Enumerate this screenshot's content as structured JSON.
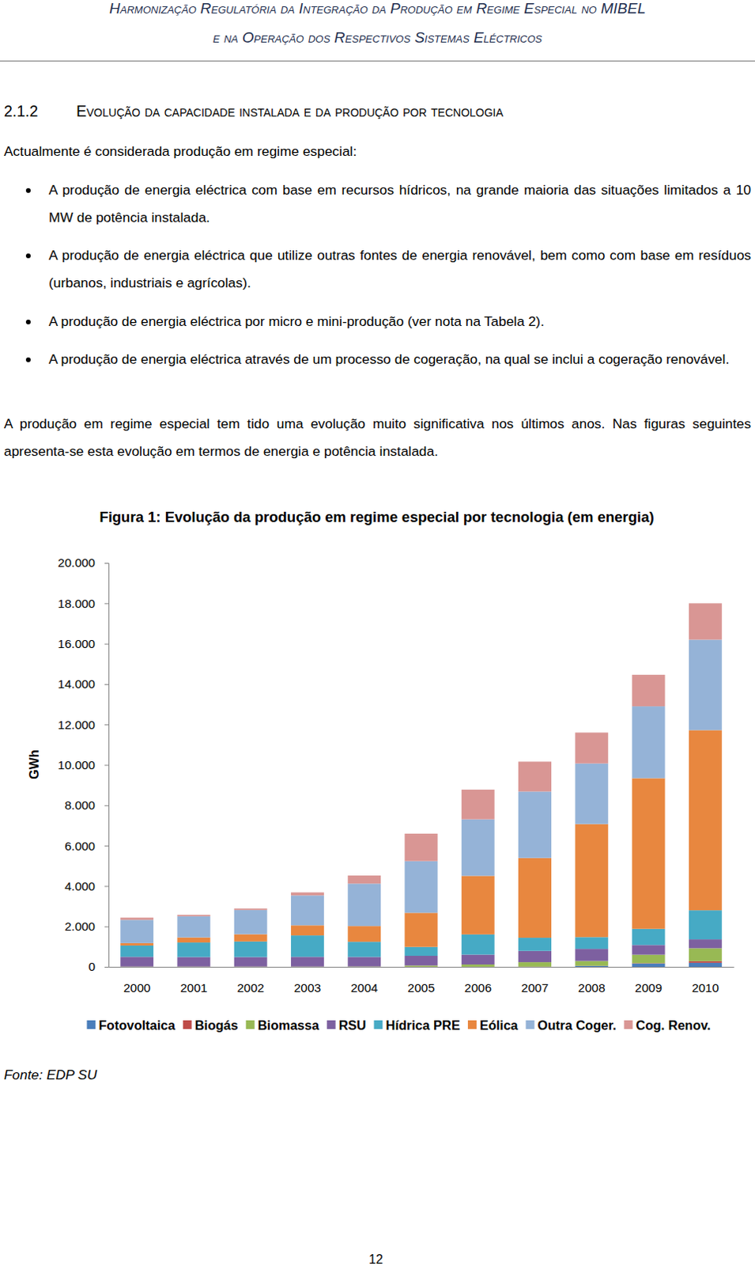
{
  "header": [
    "Harmonização Regulatória da Integração da Produção em Regime Especial no MIBEL",
    "e na Operação dos Respectivos Sistemas Eléctricos"
  ],
  "section": {
    "number": "2.1.2",
    "title": "Evolução da capacidade instalada e da produção por tecnologia"
  },
  "intro": "Actualmente é considerada produção em regime especial:",
  "bullets": [
    "A produção de energia eléctrica com base em recursos hídricos, na grande maioria das situações limitados a 10 MW de potência instalada.",
    "A produção de energia eléctrica que utilize outras fontes de energia renovável, bem como com base em resíduos (urbanos, industriais e agrícolas).",
    "A produção de energia eléctrica por micro e mini-produção (ver nota na Tabela 2).",
    "A produção de energia eléctrica através de um processo de cogeração, na qual se inclui a cogeração renovável."
  ],
  "paragraph": "A produção em regime especial tem tido uma evolução muito significativa nos últimos anos. Nas figuras seguintes apresenta-se esta evolução em termos de energia e potência instalada.",
  "chart_data": {
    "type": "bar",
    "title": "Figura 1: Evolução da produção em regime especial por tecnologia (em energia)",
    "y_label": "GWh",
    "stacked": true,
    "grid": false,
    "legend": "bottom",
    "categories": [
      "2000",
      "2001",
      "2002",
      "2003",
      "2004",
      "2005",
      "2006",
      "2007",
      "2008",
      "2009",
      "2010"
    ],
    "ylim": [
      0,
      20000
    ],
    "yticks": [
      0,
      {
        "value": 2000,
        "label": "2.000"
      },
      {
        "value": 4000,
        "label": "4.000"
      },
      {
        "value": 6000,
        "label": "6.000"
      },
      {
        "value": 8000,
        "label": "8.000"
      },
      {
        "value": 10000,
        "label": "10.000"
      },
      {
        "value": 12000,
        "label": "12.000"
      },
      {
        "value": 14000,
        "label": "14.000"
      },
      {
        "value": 16000,
        "label": "16.000"
      },
      {
        "value": 18000,
        "label": "18.000"
      },
      {
        "value": 20000,
        "label": "20.000"
      }
    ],
    "series": [
      {
        "name": "Fotovoltaica",
        "color": "#4a7ebb",
        "values": [
          0,
          0,
          0,
          0,
          0,
          0,
          0,
          0,
          40,
          160,
          200
        ]
      },
      {
        "name": "Biogás",
        "color": "#be4b48",
        "values": [
          5,
          5,
          5,
          5,
          5,
          5,
          5,
          10,
          10,
          20,
          80
        ]
      },
      {
        "name": "Biomassa",
        "color": "#98b954",
        "values": [
          10,
          10,
          10,
          10,
          15,
          60,
          110,
          220,
          240,
          420,
          640
        ]
      },
      {
        "name": "RSU",
        "color": "#7d60a0",
        "values": [
          480,
          470,
          470,
          480,
          470,
          480,
          490,
          560,
          600,
          480,
          440
        ]
      },
      {
        "name": "Hídrica PRE",
        "color": "#46aac5",
        "values": [
          560,
          720,
          770,
          1060,
          750,
          440,
          1000,
          650,
          580,
          800,
          1440
        ]
      },
      {
        "name": "Eólica",
        "color": "#e8873f",
        "values": [
          120,
          250,
          360,
          500,
          780,
          1690,
          2900,
          3950,
          5600,
          7460,
          8920
        ]
      },
      {
        "name": "Outra Coger.",
        "color": "#95b3d7",
        "values": [
          1150,
          1050,
          1200,
          1480,
          2100,
          2560,
          2800,
          3290,
          3000,
          3560,
          4480
        ]
      },
      {
        "name": "Cog. Renov.",
        "color": "#d99694",
        "values": [
          110,
          70,
          70,
          150,
          400,
          1360,
          1470,
          1480,
          1530,
          1560,
          1800
        ]
      }
    ]
  },
  "source": "Fonte: EDP SU",
  "page_number": "12"
}
